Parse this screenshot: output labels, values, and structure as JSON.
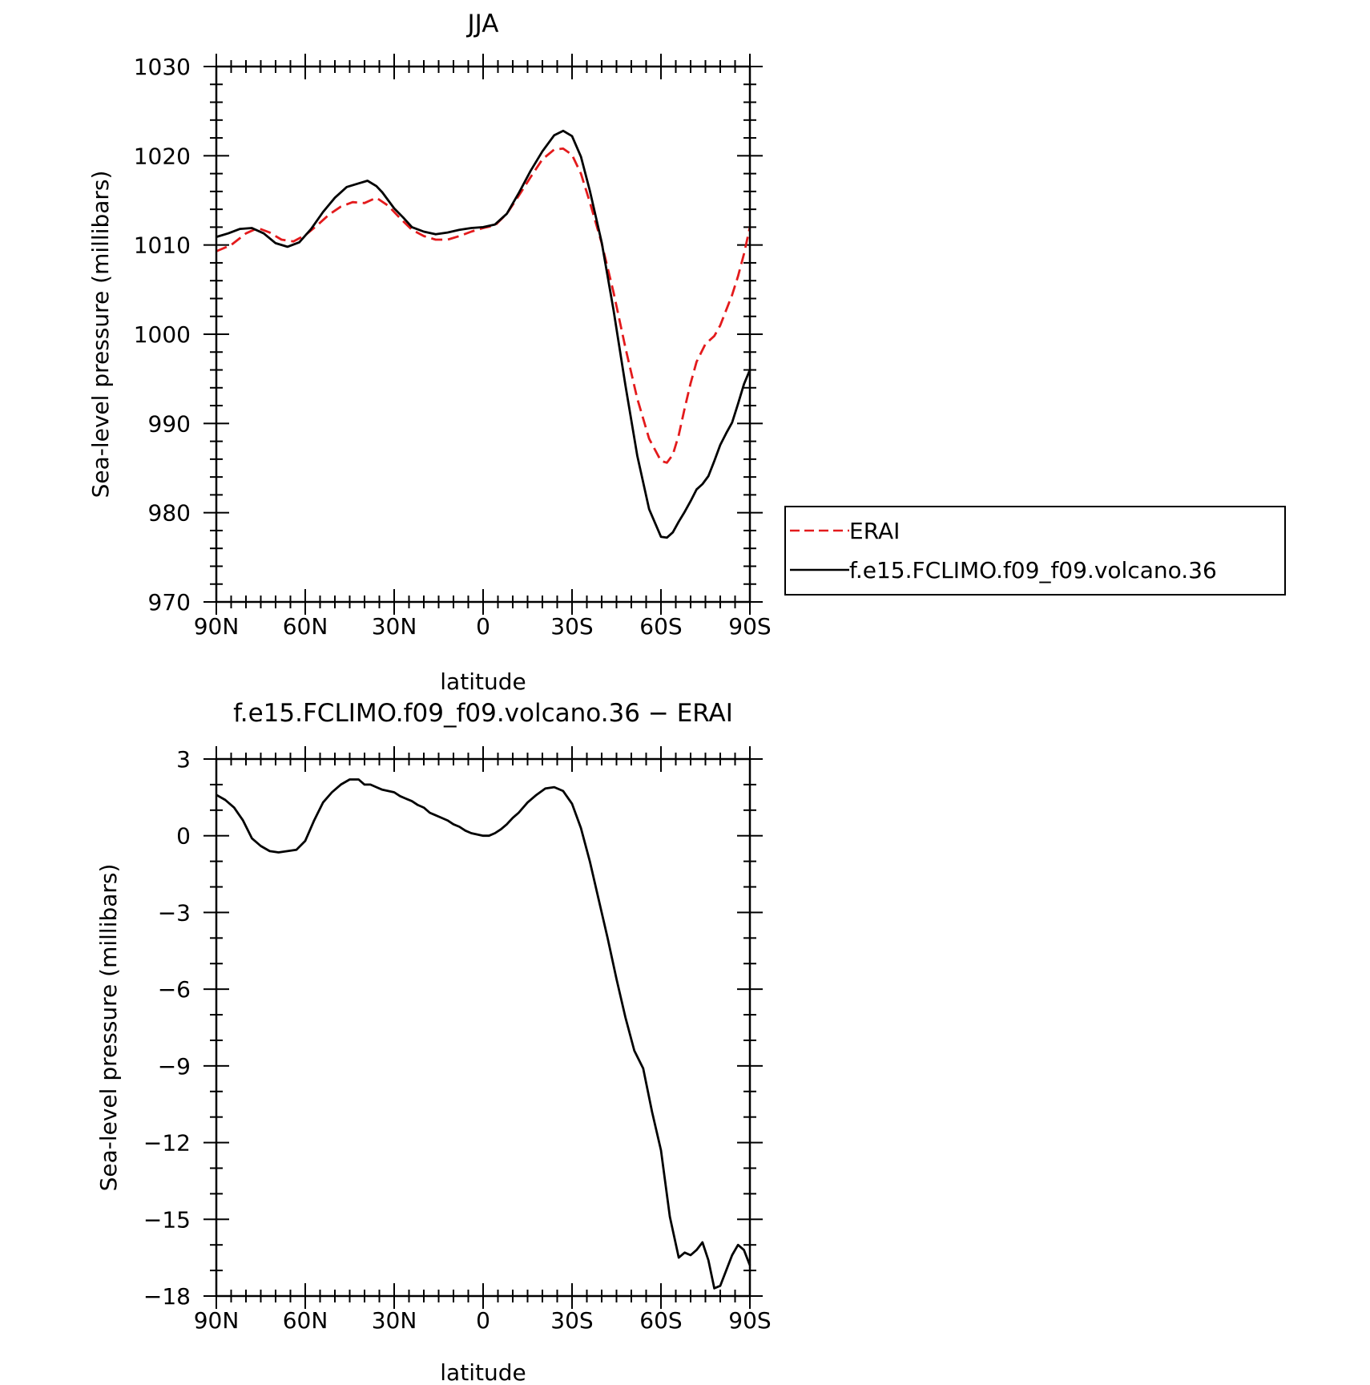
{
  "chart_data": [
    {
      "type": "line",
      "title": "JJA",
      "xlabel": "latitude",
      "ylabel": "Sea-level pressure (millibars)",
      "xlim": [
        90,
        -90
      ],
      "ylim": [
        970,
        1030
      ],
      "xticks": [
        90,
        60,
        30,
        0,
        -30,
        -60,
        -90
      ],
      "xtick_labels": [
        "90N",
        "60N",
        "30N",
        "0",
        "30S",
        "60S",
        "90S"
      ],
      "yticks": [
        970,
        980,
        990,
        1000,
        1010,
        1020,
        1030
      ],
      "ytick_labels": [
        "970",
        "980",
        "990",
        "1000",
        "1010",
        "1020",
        "1030"
      ],
      "legend_position": "right",
      "series": [
        {
          "name": "ERAI",
          "color": "#e31a1c",
          "dash": "dashed",
          "x": [
            90,
            85,
            80,
            76,
            72,
            68,
            64,
            60,
            56,
            52,
            48,
            44,
            40,
            36,
            32,
            28,
            24,
            20,
            16,
            12,
            8,
            4,
            0,
            -4,
            -8,
            -12,
            -16,
            -20,
            -24,
            -27,
            -30,
            -33,
            -36,
            -40,
            -44,
            -48,
            -52,
            -56,
            -60,
            -62,
            -64,
            -66,
            -68,
            -70,
            -72,
            -75,
            -78,
            -80,
            -82,
            -84,
            -86,
            -88,
            -90
          ],
          "y": [
            1009.3,
            1010.0,
            1011.3,
            1011.9,
            1011.4,
            1010.6,
            1010.4,
            1011.1,
            1012.2,
            1013.4,
            1014.3,
            1014.8,
            1014.7,
            1015.3,
            1014.4,
            1013.0,
            1011.7,
            1011.0,
            1010.6,
            1010.6,
            1011.0,
            1011.5,
            1011.9,
            1012.2,
            1013.5,
            1015.5,
            1017.6,
            1019.6,
            1020.7,
            1020.8,
            1020.1,
            1018.0,
            1014.8,
            1010.2,
            1004.7,
            998.5,
            992.8,
            988.3,
            985.8,
            985.6,
            986.5,
            988.7,
            991.7,
            994.5,
            996.9,
            998.9,
            999.8,
            1001.0,
            1002.7,
            1004.4,
            1006.5,
            1009.0,
            1012.0
          ]
        },
        {
          "name": "f.e15.FCLIMO.f09_f09.volcano.36",
          "color": "#000000",
          "dash": "solid",
          "x": [
            90,
            86,
            82,
            78,
            74,
            70,
            66,
            62,
            58,
            54,
            50,
            46,
            42,
            39,
            36,
            34,
            32,
            30,
            27,
            24,
            20,
            16,
            12,
            8,
            4,
            0,
            -4,
            -8,
            -12,
            -16,
            -20,
            -24,
            -27,
            -30,
            -33,
            -36,
            -40,
            -44,
            -48,
            -52,
            -56,
            -60,
            -62,
            -64,
            -66,
            -68,
            -70,
            -72,
            -74,
            -76,
            -78,
            -80,
            -82,
            -84,
            -86,
            -88,
            -90
          ],
          "y": [
            1010.9,
            1011.3,
            1011.8,
            1011.9,
            1011.3,
            1010.2,
            1009.8,
            1010.3,
            1011.8,
            1013.7,
            1015.3,
            1016.5,
            1016.9,
            1017.2,
            1016.6,
            1015.9,
            1015.0,
            1014.1,
            1013.1,
            1012.0,
            1011.5,
            1011.2,
            1011.4,
            1011.7,
            1011.9,
            1012.0,
            1012.3,
            1013.5,
            1015.8,
            1018.3,
            1020.5,
            1022.3,
            1022.8,
            1022.2,
            1019.9,
            1016.1,
            1010.3,
            1002.7,
            994.3,
            986.4,
            980.4,
            977.3,
            977.2,
            977.8,
            979.0,
            980.1,
            981.3,
            982.6,
            983.2,
            984.1,
            985.8,
            987.6,
            988.9,
            990.1,
            992.2,
            994.4,
            996.0
          ]
        }
      ]
    },
    {
      "type": "line",
      "title": "f.e15.FCLIMO.f09_f09.volcano.36 − ERAI",
      "xlabel": "latitude",
      "ylabel": "Sea-level pressure (millibars)",
      "xlim": [
        90,
        -90
      ],
      "ylim": [
        -18,
        3
      ],
      "xticks": [
        90,
        60,
        30,
        0,
        -30,
        -60,
        -90
      ],
      "xtick_labels": [
        "90N",
        "60N",
        "30N",
        "0",
        "30S",
        "60S",
        "90S"
      ],
      "yticks": [
        -18,
        -15,
        -12,
        -9,
        -6,
        -3,
        0,
        3
      ],
      "ytick_labels": [
        "−18",
        "−15",
        "−12",
        "−9",
        "−6",
        "−3",
        "0",
        "3"
      ],
      "series": [
        {
          "color": "#000000",
          "dash": "solid",
          "x": [
            90,
            87,
            84,
            81,
            78,
            75,
            72,
            69,
            66,
            63,
            60,
            57,
            54,
            51,
            48,
            45,
            42,
            40,
            38,
            36,
            34,
            32,
            30,
            28,
            26,
            24,
            22,
            20,
            18,
            16,
            14,
            12,
            10,
            8,
            6,
            4,
            2,
            0,
            -2,
            -4,
            -6,
            -8,
            -10,
            -12,
            -15,
            -18,
            -21,
            -24,
            -27,
            -30,
            -33,
            -36,
            -39,
            -42,
            -45,
            -48,
            -51,
            -54,
            -57,
            -60,
            -63,
            -66,
            -68,
            -70,
            -72,
            -74,
            -76,
            -78,
            -80,
            -82,
            -84,
            -86,
            -88,
            -90
          ],
          "y": [
            1.6,
            1.4,
            1.1,
            0.6,
            -0.1,
            -0.4,
            -0.6,
            -0.65,
            -0.6,
            -0.55,
            -0.2,
            0.6,
            1.3,
            1.7,
            2.0,
            2.2,
            2.2,
            2.0,
            2.0,
            1.9,
            1.8,
            1.75,
            1.7,
            1.55,
            1.45,
            1.35,
            1.2,
            1.1,
            0.9,
            0.8,
            0.7,
            0.6,
            0.45,
            0.35,
            0.2,
            0.1,
            0.05,
            0.0,
            0.0,
            0.1,
            0.25,
            0.45,
            0.7,
            0.9,
            1.3,
            1.6,
            1.85,
            1.9,
            1.75,
            1.25,
            0.3,
            -1.0,
            -2.5,
            -4.0,
            -5.6,
            -7.1,
            -8.4,
            -9.1,
            -10.8,
            -12.3,
            -14.9,
            -16.5,
            -16.3,
            -16.4,
            -16.2,
            -15.9,
            -16.6,
            -17.7,
            -17.6,
            -17.0,
            -16.4,
            -16.0,
            -16.2,
            -16.8
          ]
        }
      ]
    }
  ]
}
